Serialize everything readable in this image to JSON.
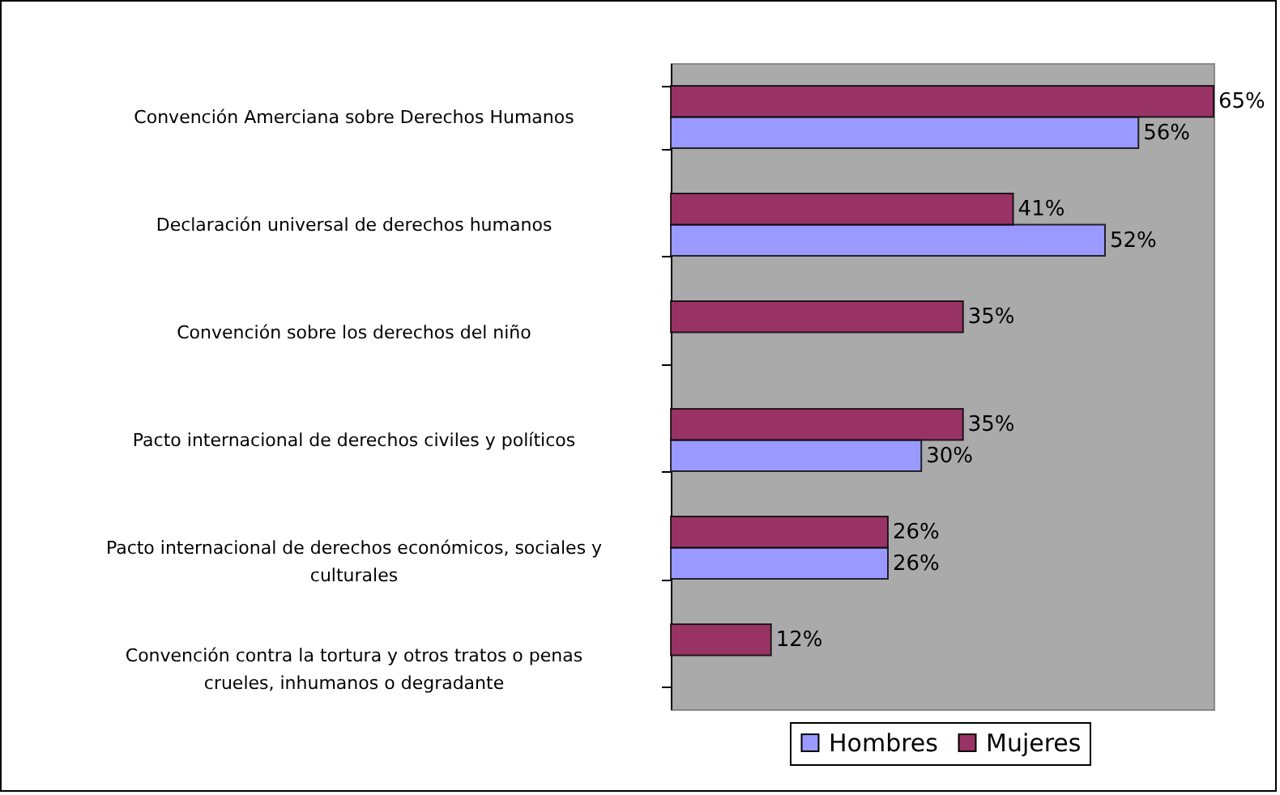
{
  "chart_data": {
    "type": "bar",
    "orientation": "horizontal",
    "legend": "bottom",
    "grid": false,
    "categories": [
      "Convención Amerciana sobre Derechos Humanos",
      "Declaración universal de derechos humanos",
      "Convención sobre los derechos del niño",
      "Pacto internacional de derechos civiles y políticos",
      "Pacto internacional de derechos económicos, sociales y culturales",
      "Convención contra la tortura y otros tratos o penas crueles, inhumanos o degradante"
    ],
    "series": [
      {
        "name": "Hombres",
        "color": "#9999ff",
        "values": [
          56,
          52,
          null,
          30,
          26,
          null
        ],
        "value_labels": [
          "56%",
          "52%",
          null,
          "30%",
          "26%",
          null
        ]
      },
      {
        "name": "Mujeres",
        "color": "#993366",
        "values": [
          65,
          41,
          35,
          35,
          26,
          12
        ],
        "value_labels": [
          "65%",
          "41%",
          "35%",
          "35%",
          "26%",
          "12%"
        ]
      }
    ]
  }
}
